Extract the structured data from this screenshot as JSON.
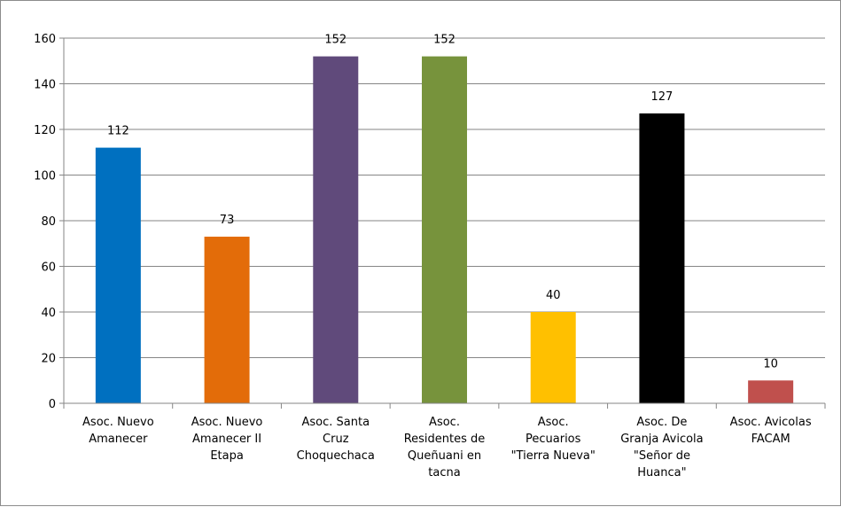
{
  "chart_data": {
    "type": "bar",
    "title": "",
    "xlabel": "",
    "ylabel": "",
    "ylim": [
      0,
      160
    ],
    "yticks": [
      0,
      20,
      40,
      60,
      80,
      100,
      120,
      140,
      160
    ],
    "grid": true,
    "legend": "none",
    "categories": [
      [
        "Asoc. Nuevo",
        "Amanecer"
      ],
      [
        "Asoc. Nuevo",
        "Amanecer II",
        "Etapa"
      ],
      [
        "Asoc. Santa",
        "Cruz",
        "Choquechaca"
      ],
      [
        "Asoc.",
        "Residentes de",
        "Queñuani en",
        "tacna"
      ],
      [
        "Asoc.",
        "Pecuarios",
        "\"Tierra Nueva\""
      ],
      [
        "Asoc. De",
        "Granja Avicola",
        "\"Señor de",
        "Huanca\""
      ],
      [
        "Asoc. Avicolas",
        "FACAM"
      ]
    ],
    "values": [
      112,
      73,
      152,
      152,
      40,
      127,
      10
    ],
    "colors": [
      "#0070c0",
      "#e36c09",
      "#604a7b",
      "#77933c",
      "#ffc000",
      "#000000",
      "#c0504d"
    ]
  }
}
